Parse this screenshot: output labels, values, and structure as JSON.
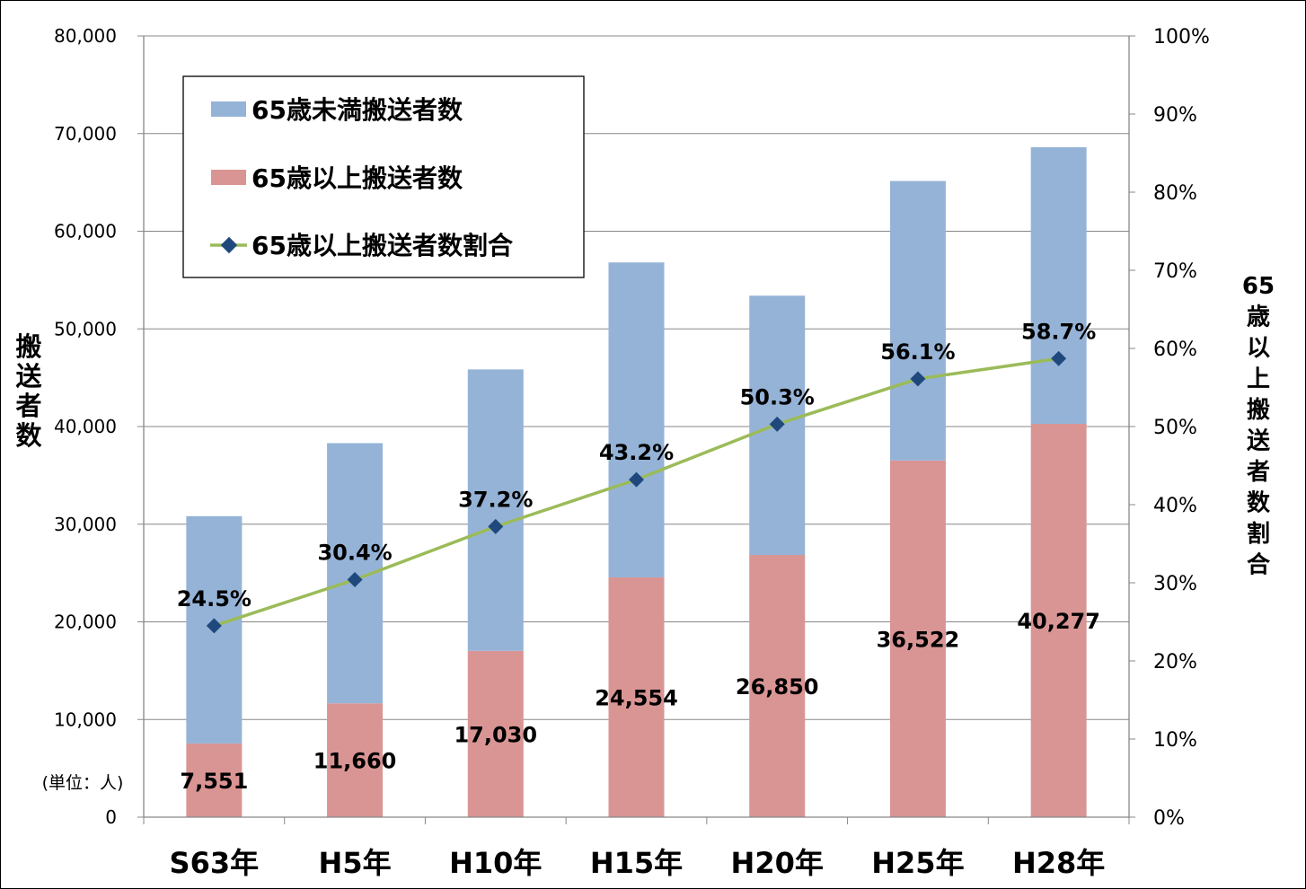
{
  "chart_data": {
    "type": "bar",
    "stacked": true,
    "categories": [
      "S63年",
      "H5年",
      "H10年",
      "H15年",
      "H20年",
      "H25年",
      "H28年"
    ],
    "series": [
      {
        "name": "65歳未満搬送者数",
        "values": [
          23270,
          26640,
          28820,
          32250,
          26550,
          28620,
          28330
        ],
        "color": "#95b3d7"
      },
      {
        "name": "65歳以上搬送者数",
        "values": [
          7551,
          11660,
          17030,
          24554,
          26850,
          36522,
          40277
        ],
        "labels": [
          "7,551",
          "11,660",
          "17,030",
          "24,554",
          "26,850",
          "36,522",
          "40,277"
        ],
        "color": "#d99594"
      },
      {
        "name": "65歳以上搬送者数割合",
        "axis": "right",
        "type": "line",
        "values": [
          24.5,
          30.4,
          37.2,
          43.2,
          50.3,
          56.1,
          58.7
        ],
        "labels": [
          "24.5%",
          "30.4%",
          "37.2%",
          "43.2%",
          "50.3%",
          "56.1%",
          "58.7%"
        ],
        "line_color": "#9bbb59",
        "marker_color": "#1f497d"
      }
    ],
    "ylabel": "搬送者数",
    "ylabel_right": "65歳以上搬送者数割合",
    "unit_note": "(単位：人)",
    "ylim": [
      0,
      80000
    ],
    "ylim_right": [
      0,
      100
    ],
    "yticks": [
      "0",
      "10,000",
      "20,000",
      "30,000",
      "40,000",
      "50,000",
      "60,000",
      "70,000",
      "80,000"
    ],
    "yticks_right": [
      "0%",
      "10%",
      "20%",
      "30%",
      "40%",
      "50%",
      "60%",
      "70%",
      "80%",
      "90%",
      "100%"
    ],
    "grid": true,
    "legend_position": "top-left"
  }
}
